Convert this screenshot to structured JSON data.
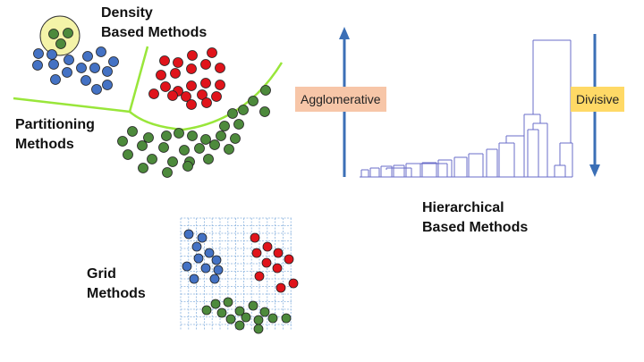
{
  "labels": {
    "density": "Density\nBased Methods",
    "partitioning": "Partitioning\nMethods",
    "hierarchical": "Hierarchical\nBased Methods",
    "grid": "Grid\nMethods",
    "agglomerative": "Agglomerative",
    "divisive": "Divisive"
  },
  "colors": {
    "blue": "#4472c4",
    "red": "#e0141b",
    "green": "#4d8a3c",
    "boundary": "#99e63a",
    "highlight": "#f4f3a8",
    "arrow": "#3b6fb6",
    "dendrogram": "#6a6cc8",
    "grid": "#8ab4e0",
    "agglomerative_bg": "#f7c6a8",
    "divisive_bg": "#ffd966"
  }
}
